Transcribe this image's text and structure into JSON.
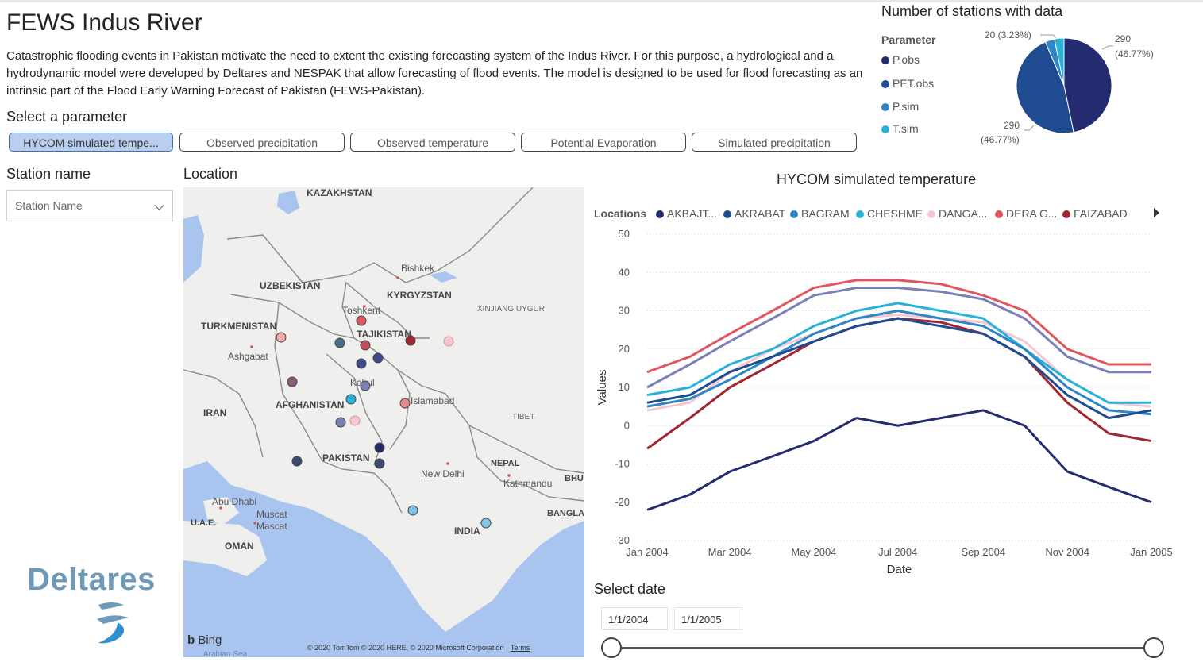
{
  "header": {
    "title": "FEWS Indus River",
    "description": "Catastrophic flooding events in Pakistan motivate the need to extent the existing forecasting system of the Indus River. For this purpose, a hydrological and a hydrodynamic model were developed by Deltares and NESPAK that allow forecasting of flood events. The model is designed to be used for flood forecasting as an intrinsic part of the Flood Early Warning Forecast of Pakistan (FEWS-Pakistan)."
  },
  "parameter_selector": {
    "label": "Select a parameter",
    "buttons": [
      {
        "label": "HYCOM simulated tempe...",
        "active": true
      },
      {
        "label": "Observed precipitation",
        "active": false
      },
      {
        "label": "Observed temperature",
        "active": false
      },
      {
        "label": "Potential Evaporation",
        "active": false
      },
      {
        "label": "Simulated precipitation",
        "active": false
      }
    ]
  },
  "station_filter": {
    "label": "Station name",
    "placeholder": "Station Name"
  },
  "location_panel": {
    "label": "Location",
    "map_labels": [
      "KAZAKHSTAN",
      "Bishkek",
      "UZBEKISTAN",
      "KYRGYZSTAN",
      "Toshkent",
      "XINJIANG UYGUR",
      "TURKMENISTAN",
      "TAJIKISTAN",
      "Ashgabat",
      "Kabul",
      "AFGHANISTAN",
      "Islamabad",
      "IRAN",
      "TIBET",
      "PAKISTAN",
      "NEPAL",
      "New Delhi",
      "Kathmandu",
      "BHU",
      "Abu Dhabi",
      "Muscat",
      "Mascat",
      "U.A.E.",
      "BANGLA",
      "INDIA",
      "OMAN",
      "Arabian Sea"
    ],
    "bing_label": "Bing",
    "copyright": "© 2020 TomTom © 2020 HERE, © 2020 Microsoft Corporation",
    "terms": "Terms"
  },
  "logo": {
    "text": "Deltares"
  },
  "stations_pie": {
    "title": "Number of stations with data",
    "legend_title": "Parameter",
    "legend": [
      {
        "name": "P.obs",
        "color": "#252b6f"
      },
      {
        "name": "PET.obs",
        "color": "#1f4b91"
      },
      {
        "name": "P.sim",
        "color": "#2f86c6"
      },
      {
        "name": "T.sim",
        "color": "#29b2d8"
      }
    ],
    "labels": {
      "top": "20 (3.23%)",
      "right_value": "290",
      "right_pct": "(46.77%)",
      "left_value": "290",
      "left_pct": "(46.77%)"
    }
  },
  "chart_data": [
    {
      "type": "pie",
      "title": "Number of stations with data",
      "categories": [
        "P.obs",
        "PET.obs",
        "P.sim",
        "T.sim"
      ],
      "values": [
        290,
        290,
        20,
        20
      ]
    },
    {
      "type": "line",
      "title": "HYCOM simulated temperature",
      "xlabel": "Date",
      "ylabel": "Values",
      "ylim": [
        -30,
        50
      ],
      "yticks": [
        "50",
        "40",
        "30",
        "20",
        "10",
        "0",
        "-10",
        "-20",
        "-30"
      ],
      "xticks": [
        "Jan 2004",
        "Mar 2004",
        "May 2004",
        "Jul 2004",
        "Sep 2004",
        "Nov 2004",
        "Jan 2005"
      ],
      "x": [
        "2004-01-01",
        "2004-02-01",
        "2004-03-01",
        "2004-04-01",
        "2004-05-01",
        "2004-06-01",
        "2004-07-01",
        "2004-08-01",
        "2004-09-01",
        "2004-10-01",
        "2004-11-01",
        "2004-12-01",
        "2005-01-01"
      ],
      "legend_title": "Locations",
      "series": [
        {
          "name": "AKBAJT...",
          "color": "#252b6f",
          "values": [
            -22,
            -18,
            -12,
            -8,
            -4,
            2,
            0,
            2,
            4,
            0,
            -12,
            -16,
            -20
          ]
        },
        {
          "name": "AKRABAT",
          "color": "#1f4b91",
          "values": [
            6,
            8,
            14,
            18,
            22,
            26,
            28,
            26,
            24,
            18,
            8,
            2,
            4
          ]
        },
        {
          "name": "BAGRAM",
          "color": "#2f86c6",
          "values": [
            5,
            7,
            12,
            18,
            24,
            28,
            30,
            28,
            26,
            20,
            10,
            4,
            3
          ]
        },
        {
          "name": "CHESHME",
          "color": "#29b2d8",
          "values": [
            8,
            10,
            16,
            20,
            26,
            30,
            32,
            30,
            28,
            20,
            12,
            6,
            6
          ]
        },
        {
          "name": "DANGA...",
          "color": "#f7c6cf",
          "values": [
            4,
            6,
            14,
            20,
            24,
            28,
            29,
            28,
            27,
            22,
            12,
            6,
            5
          ]
        },
        {
          "name": "DERA G...",
          "color": "#e05560",
          "values": [
            14,
            18,
            24,
            30,
            36,
            38,
            38,
            37,
            34,
            30,
            20,
            16,
            16
          ]
        },
        {
          "name": "FAIZABAD",
          "color": "#a12630",
          "values": [
            -6,
            2,
            10,
            16,
            22,
            26,
            28,
            27,
            24,
            18,
            6,
            -2,
            -4
          ]
        },
        {
          "color": "#7b80b8",
          "values": [
            10,
            16,
            22,
            28,
            34,
            36,
            36,
            35,
            33,
            28,
            18,
            14,
            14
          ]
        }
      ]
    }
  ],
  "date_filter": {
    "label": "Select date",
    "start": "1/1/2004",
    "end": "1/1/2005"
  }
}
